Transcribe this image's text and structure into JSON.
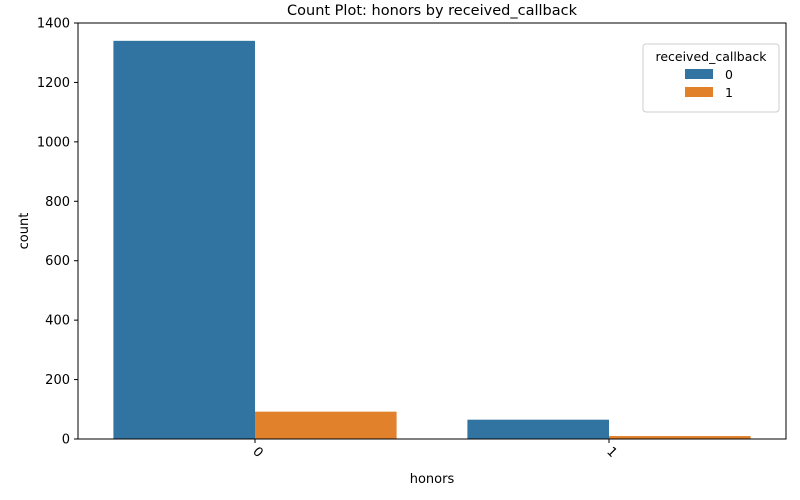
{
  "chart_data": {
    "type": "bar",
    "title": "Count Plot: honors by received_callback",
    "xlabel": "honors",
    "ylabel": "count",
    "categories": [
      "0",
      "1"
    ],
    "yticks": [
      "0",
      "200",
      "400",
      "600",
      "800",
      "1000",
      "1200",
      "1400"
    ],
    "ylim": [
      0,
      1400
    ],
    "series": [
      {
        "name": "0",
        "values": [
          1340,
          65
        ],
        "color": "#3274a1"
      },
      {
        "name": "1",
        "values": [
          92,
          10
        ],
        "color": "#e1812c"
      }
    ],
    "legend": {
      "title": "received_callback",
      "position": "top-right"
    },
    "grid": false
  }
}
